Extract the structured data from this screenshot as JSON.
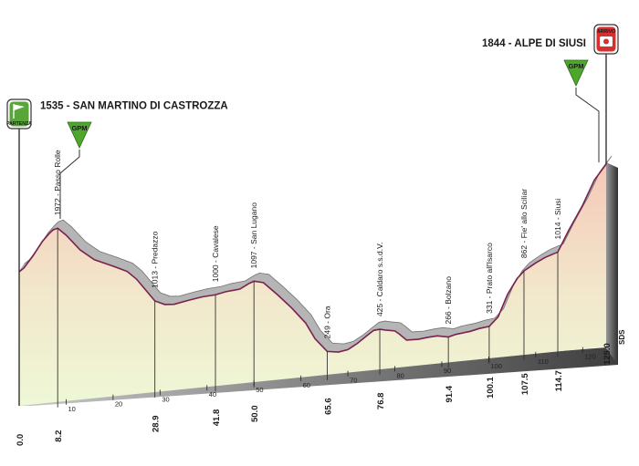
{
  "chart_data": {
    "type": "area",
    "title": "",
    "xlabel": "",
    "ylabel": "",
    "xlim": [
      0,
      125
    ],
    "ylim": [
      0,
      2200
    ],
    "x_ticks": [
      10,
      20,
      30,
      40,
      50,
      60,
      70,
      80,
      90,
      100,
      110,
      120
    ],
    "profile": [
      [
        0,
        1535
      ],
      [
        1,
        1570
      ],
      [
        3,
        1700
      ],
      [
        5,
        1850
      ],
      [
        6.5,
        1930
      ],
      [
        7.2,
        1960
      ],
      [
        8.2,
        1972
      ],
      [
        10,
        1880
      ],
      [
        13,
        1690
      ],
      [
        16,
        1560
      ],
      [
        20,
        1460
      ],
      [
        23,
        1380
      ],
      [
        25,
        1280
      ],
      [
        28.9,
        1013
      ],
      [
        31,
        960
      ],
      [
        33,
        950
      ],
      [
        36,
        975
      ],
      [
        39,
        995
      ],
      [
        41.8,
        1000
      ],
      [
        44,
        1020
      ],
      [
        47,
        1030
      ],
      [
        49,
        1080
      ],
      [
        50,
        1097
      ],
      [
        52,
        1070
      ],
      [
        55,
        920
      ],
      [
        58,
        760
      ],
      [
        61,
        580
      ],
      [
        63,
        400
      ],
      [
        65.6,
        249
      ],
      [
        68,
        230
      ],
      [
        70,
        245
      ],
      [
        72,
        300
      ],
      [
        74,
        370
      ],
      [
        75.5,
        420
      ],
      [
        76.8,
        425
      ],
      [
        78,
        410
      ],
      [
        80,
        390
      ],
      [
        81,
        350
      ],
      [
        82.5,
        280
      ],
      [
        85,
        275
      ],
      [
        87,
        285
      ],
      [
        89,
        290
      ],
      [
        91.4,
        266
      ],
      [
        93,
        285
      ],
      [
        96,
        300
      ],
      [
        98,
        320
      ],
      [
        100.1,
        331
      ],
      [
        102,
        420
      ],
      [
        104,
        640
      ],
      [
        106,
        790
      ],
      [
        107.5,
        862
      ],
      [
        110,
        930
      ],
      [
        112,
        975
      ],
      [
        114.7,
        1014
      ],
      [
        117,
        1220
      ],
      [
        120,
        1460
      ],
      [
        122.5,
        1700
      ],
      [
        125,
        1844
      ]
    ],
    "points": [
      {
        "km": "0.0",
        "name": "1535 - SAN MARTINO DI CASTROZZA"
      },
      {
        "km": "8.2",
        "name": "1972 - Passo Rolle"
      },
      {
        "km": "28.9",
        "name": "1013 - Predazzo"
      },
      {
        "km": "41.8",
        "name": "1000 - Cavalese"
      },
      {
        "km": "50.0",
        "name": "1097 - San Lugano"
      },
      {
        "km": "65.6",
        "name": "249 - Ora"
      },
      {
        "km": "76.8",
        "name": "425 - Caldaro s.s.d.V."
      },
      {
        "km": "91.4",
        "name": "266 - Bolzano"
      },
      {
        "km": "100.1",
        "name": "331 - Prato all'Isarco"
      },
      {
        "km": "107.5",
        "name": "862 - Fie' allo Sciliar"
      },
      {
        "km": "114.7",
        "name": "1014 - Siusi"
      },
      {
        "km": "125.0",
        "name": "1844 - ALPE DI SIUSI"
      }
    ],
    "gpm_label": "GPM",
    "start_badge": "PARTENZA",
    "finish_badge": "ARRIVO",
    "sds_label": "SDS",
    "colors": {
      "fill_top": "#f5c8b8",
      "fill_bottom": "#f0f8d8",
      "route_line": "#7a2150",
      "gpm_green": "#4ea62d",
      "start_green": "#5aa53a",
      "finish_red": "#d92e2e",
      "road_band": "#b9b9b9"
    }
  }
}
